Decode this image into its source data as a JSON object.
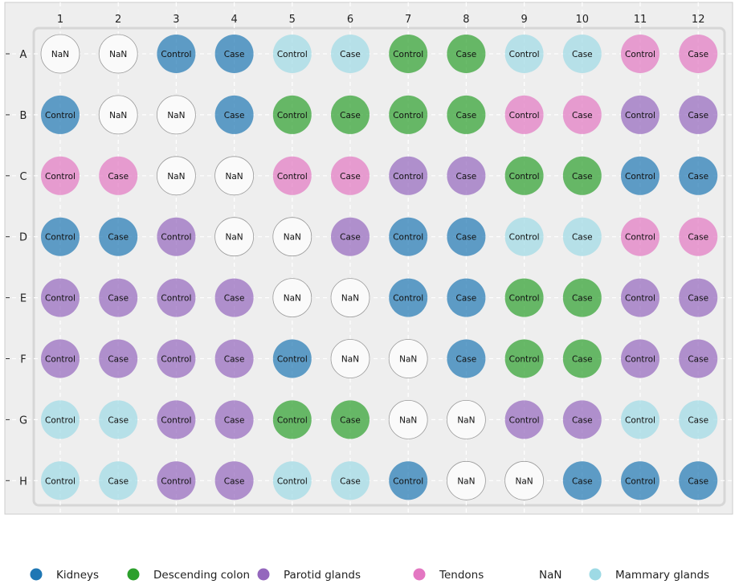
{
  "chart_data": {
    "type": "scatter",
    "columns": [
      "1",
      "2",
      "3",
      "4",
      "5",
      "6",
      "7",
      "8",
      "9",
      "10",
      "11",
      "12"
    ],
    "rows": [
      "A",
      "B",
      "C",
      "D",
      "E",
      "F",
      "G",
      "H"
    ],
    "wells": [
      [
        "NaN|NaN",
        "NaN|NaN",
        "Kidneys|Control",
        "Kidneys|Case",
        "Mammary glands|Control",
        "Mammary glands|Case",
        "Descending colon|Control",
        "Descending colon|Case",
        "Mammary glands|Control",
        "Mammary glands|Case",
        "Tendons|Control",
        "Tendons|Case"
      ],
      [
        "Kidneys|Control",
        "NaN|NaN",
        "NaN|NaN",
        "Kidneys|Case",
        "Descending colon|Control",
        "Descending colon|Case",
        "Descending colon|Control",
        "Descending colon|Case",
        "Tendons|Control",
        "Tendons|Case",
        "Parotid glands|Control",
        "Parotid glands|Case"
      ],
      [
        "Tendons|Control",
        "Tendons|Case",
        "NaN|NaN",
        "NaN|NaN",
        "Tendons|Control",
        "Tendons|Case",
        "Parotid glands|Control",
        "Parotid glands|Case",
        "Descending colon|Control",
        "Descending colon|Case",
        "Kidneys|Control",
        "Kidneys|Case"
      ],
      [
        "Kidneys|Control",
        "Kidneys|Case",
        "Parotid glands|Control",
        "NaN|NaN",
        "NaN|NaN",
        "Parotid glands|Case",
        "Kidneys|Control",
        "Kidneys|Case",
        "Mammary glands|Control",
        "Mammary glands|Case",
        "Tendons|Control",
        "Tendons|Case"
      ],
      [
        "Parotid glands|Control",
        "Parotid glands|Case",
        "Parotid glands|Control",
        "Parotid glands|Case",
        "NaN|NaN",
        "NaN|NaN",
        "Kidneys|Control",
        "Kidneys|Case",
        "Descending colon|Control",
        "Descending colon|Case",
        "Parotid glands|Control",
        "Parotid glands|Case"
      ],
      [
        "Parotid glands|Control",
        "Parotid glands|Case",
        "Parotid glands|Control",
        "Parotid glands|Case",
        "Kidneys|Control",
        "NaN|NaN",
        "NaN|NaN",
        "Kidneys|Case",
        "Descending colon|Control",
        "Descending colon|Case",
        "Parotid glands|Control",
        "Parotid glands|Case"
      ],
      [
        "Mammary glands|Control",
        "Mammary glands|Case",
        "Parotid glands|Control",
        "Parotid glands|Case",
        "Descending colon|Control",
        "Descending colon|Case",
        "NaN|NaN",
        "NaN|NaN",
        "Parotid glands|Control",
        "Parotid glands|Case",
        "Mammary glands|Control",
        "Mammary glands|Case"
      ],
      [
        "Mammary glands|Control",
        "Mammary glands|Case",
        "Parotid glands|Control",
        "Parotid glands|Case",
        "Mammary glands|Control",
        "Mammary glands|Case",
        "Kidneys|Control",
        "NaN|NaN",
        "NaN|NaN",
        "Kidneys|Case",
        "Kidneys|Control",
        "Kidneys|Case"
      ]
    ],
    "legend": [
      {
        "name": "Kidneys",
        "color": "#1f77b4"
      },
      {
        "name": "Descending colon",
        "color": "#2ca02c"
      },
      {
        "name": "Parotid glands",
        "color": "#9467bd"
      },
      {
        "name": "Tendons",
        "color": "#e377c2"
      },
      {
        "name": "NaN",
        "color": "#ffffff"
      },
      {
        "name": "Mammary glands",
        "color": "#9edae5"
      }
    ],
    "legend_placement": "bottom",
    "grid": true
  }
}
